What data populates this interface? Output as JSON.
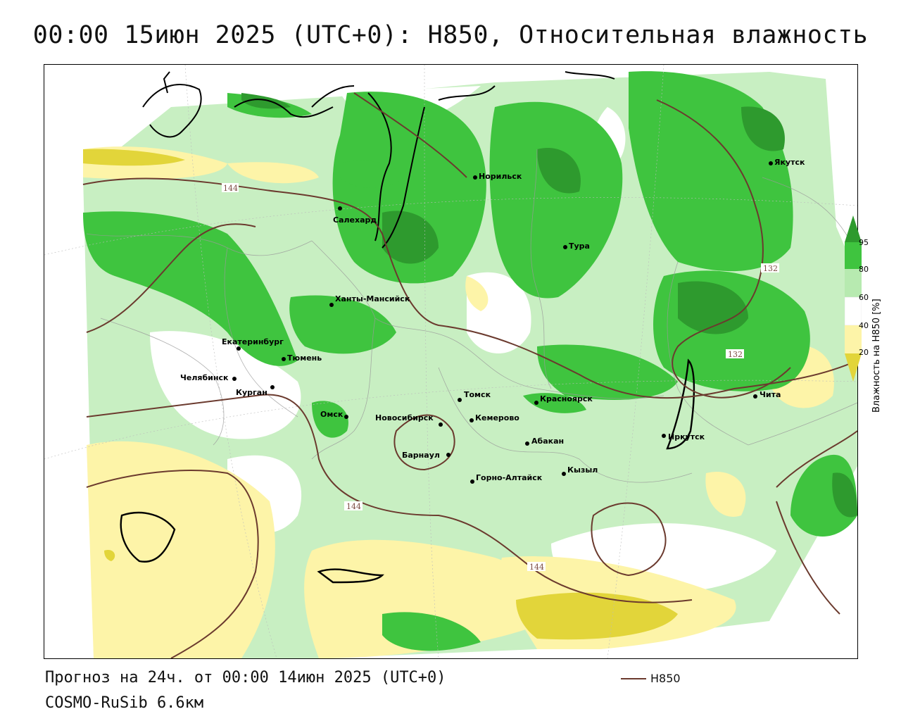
{
  "title": "00:00 15июн 2025 (UTC+0): H850, Относительная влажность",
  "forecast_line": "Прогноз на 24ч. от 00:00 14июн 2025 (UTC+0)",
  "model_line": "COSMO-RuSib 6.6км",
  "line_legend": {
    "label": "H850",
    "color": "#6b3a2e"
  },
  "colorbar": {
    "title": "Влажность на H850 [%]",
    "ticks": [
      "95",
      "80",
      "60",
      "40",
      "20"
    ],
    "colors": {
      "gt95": "#2e9a2e",
      "80_95": "#3fc43f",
      "60_80": "#b7eab0",
      "40_60": "#ffffff",
      "20_40": "#fdf4a8",
      "lt20": "#e2d53a"
    }
  },
  "isolines": {
    "labels": [
      "144",
      "132",
      "132",
      "144",
      "144"
    ]
  },
  "cities": [
    {
      "name": "Норильск"
    },
    {
      "name": "Салехард"
    },
    {
      "name": "Тура"
    },
    {
      "name": "Якутск"
    },
    {
      "name": "Ханты-Мансийск"
    },
    {
      "name": "Екатеринбург"
    },
    {
      "name": "Тюмень"
    },
    {
      "name": "Челябинск"
    },
    {
      "name": "Курган"
    },
    {
      "name": "Омск"
    },
    {
      "name": "Новосибирск"
    },
    {
      "name": "Томск"
    },
    {
      "name": "Кемерово"
    },
    {
      "name": "Красноярск"
    },
    {
      "name": "Абакан"
    },
    {
      "name": "Барнаул"
    },
    {
      "name": "Горно-Алтайск"
    },
    {
      "name": "Кызыл"
    },
    {
      "name": "Иркутск"
    },
    {
      "name": "Чита"
    }
  ]
}
